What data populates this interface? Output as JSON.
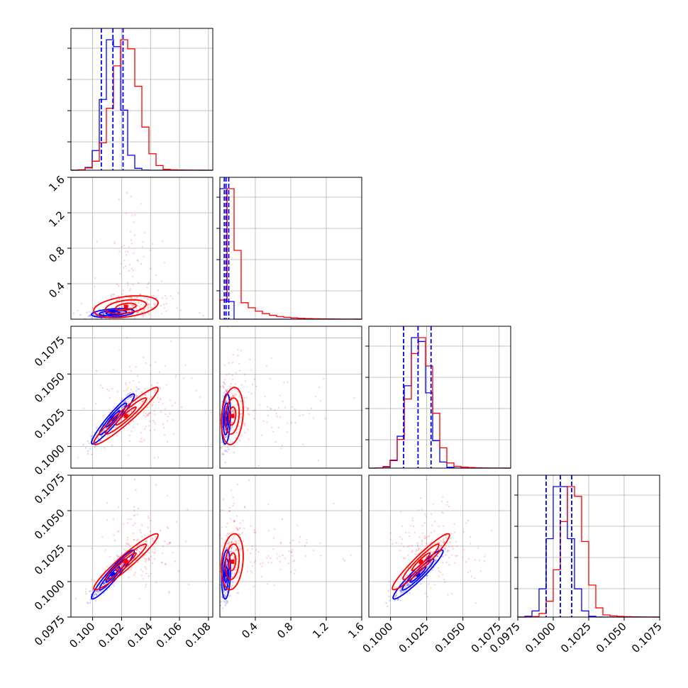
{
  "chart_data": {
    "type": "corner",
    "title": "",
    "series": [
      {
        "color": "#0000ff",
        "quantile_lines": true
      },
      {
        "color": "#ff0000",
        "quantile_lines": false
      }
    ],
    "parameters": [
      {
        "range": [
          0.0985,
          0.1083
        ],
        "ticks": [
          0.1,
          0.102,
          0.104,
          0.106,
          0.108
        ],
        "tick_labels": [
          "0.100",
          "0.102",
          "0.104",
          "0.106",
          "0.108"
        ],
        "blue": {
          "mean": 0.1014,
          "sd": 0.0006
        },
        "red": {
          "mean": 0.1023,
          "sd": 0.0009,
          "tail": 0.0008
        },
        "blue_quantiles": [
          0.1006,
          0.1014,
          0.1021
        ]
      },
      {
        "range": [
          0.0,
          1.6
        ],
        "ticks": [
          0.4,
          0.8,
          1.2,
          1.6
        ],
        "tick_labels": [
          "0.4",
          "0.8",
          "1.2",
          "1.6"
        ],
        "blue": {
          "mean": 0.07,
          "sd": 0.02
        },
        "red": {
          "mean": 0.14,
          "sd": 0.05,
          "tail": 0.22
        },
        "blue_quantiles": [
          0.05,
          0.07,
          0.1
        ]
      },
      {
        "range": [
          0.0985,
          0.1083
        ],
        "ticks": [
          0.1,
          0.1025,
          0.105,
          0.1075
        ],
        "tick_labels": [
          "0.1000",
          "0.1025",
          "0.1050",
          "0.1075"
        ],
        "blue": {
          "mean": 0.1019,
          "sd": 0.0007
        },
        "red": {
          "mean": 0.1021,
          "sd": 0.0008,
          "tail": 0.0009
        },
        "blue_quantiles": [
          0.1009,
          0.1019,
          0.1028
        ]
      },
      {
        "range": [
          0.0975,
          0.1075
        ],
        "ticks": [
          0.0975,
          0.1,
          0.1025,
          0.105,
          0.1075
        ],
        "tick_labels": [
          "0.0975",
          "0.1000",
          "0.1025",
          "0.1050",
          "0.1075"
        ],
        "blue": {
          "mean": 0.1005,
          "sd": 0.0007
        },
        "red": {
          "mean": 0.1014,
          "sd": 0.0008,
          "tail": 0.0009
        },
        "blue_quantiles": [
          0.0995,
          0.1005,
          0.1013
        ]
      }
    ],
    "correlations": {
      "0-1": 0.35,
      "0-2": 0.95,
      "0-3": 0.95,
      "1-2": 0.2,
      "1-3": 0.2,
      "2-3": 0.95
    },
    "grid": true
  }
}
